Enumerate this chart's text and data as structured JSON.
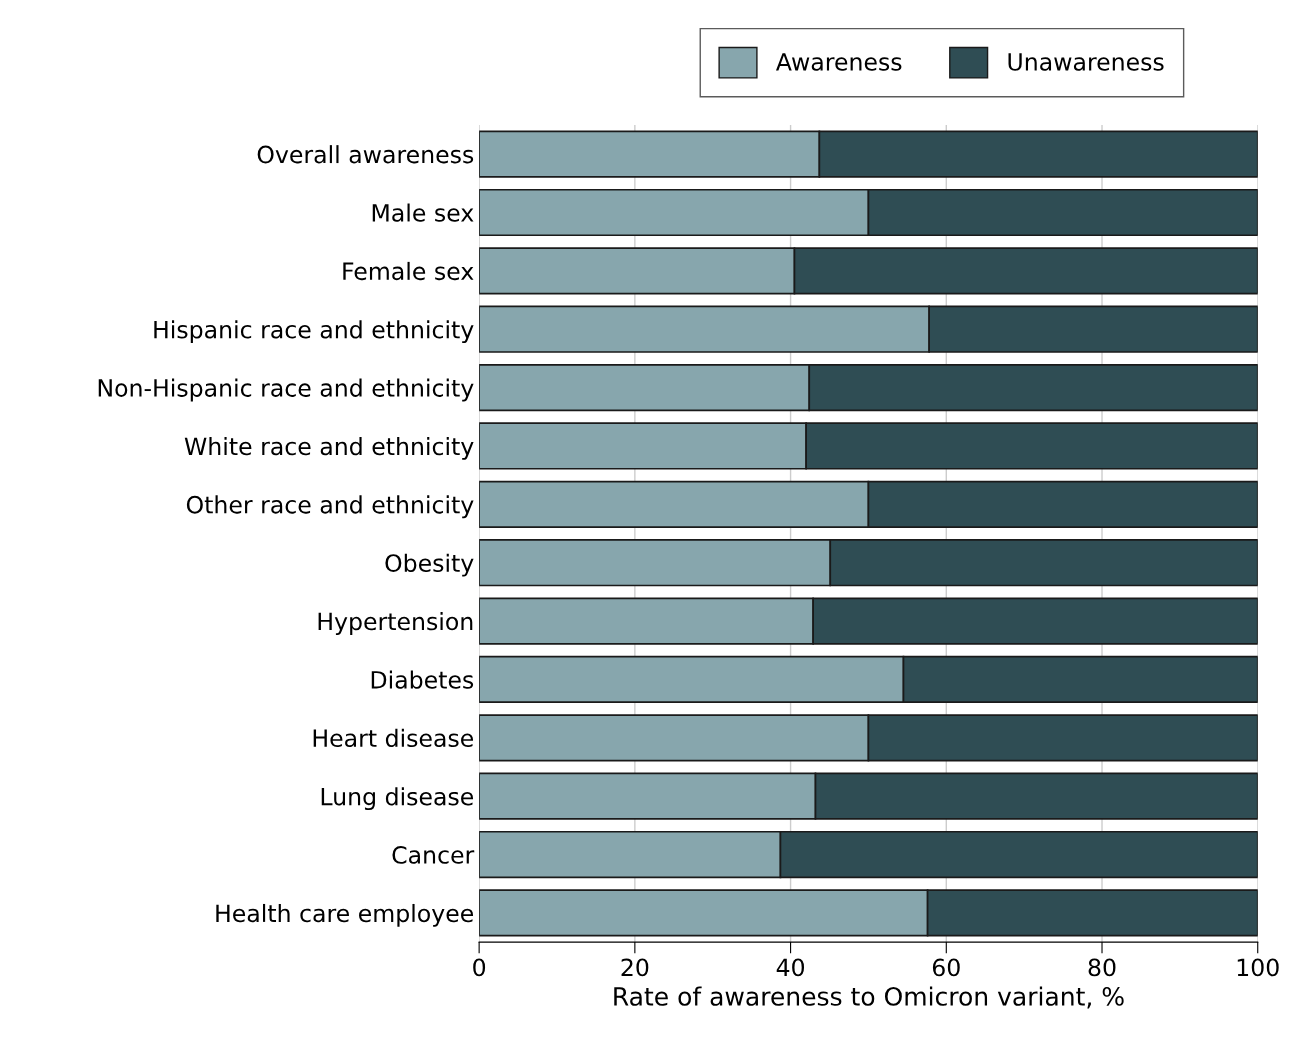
{
  "chart_data": {
    "type": "bar",
    "orientation": "horizontal",
    "stacked": true,
    "categories": [
      "Overall awareness",
      "Male sex",
      "Female sex",
      "Hispanic race and ethnicity",
      "Non-Hispanic race and ethnicity",
      "White race and ethnicity",
      "Other race and ethnicity",
      "Obesity",
      "Hypertension",
      "Diabetes",
      "Heart disease",
      "Lung disease",
      "Cancer",
      "Health care employee"
    ],
    "series": [
      {
        "name": "Awareness",
        "color": "#87a6ad",
        "values": [
          43.7,
          50.0,
          40.5,
          57.8,
          42.4,
          42.0,
          50.0,
          45.1,
          42.9,
          54.5,
          50.0,
          43.2,
          38.7,
          57.6
        ]
      },
      {
        "name": "Unawareness",
        "color": "#2f4d54",
        "values": [
          56.3,
          50.0,
          59.5,
          42.2,
          57.6,
          58.0,
          50.0,
          54.9,
          57.1,
          45.5,
          50.0,
          56.8,
          61.3,
          42.4
        ]
      }
    ],
    "xlabel": "Rate of awareness to Omicron variant, %",
    "xlim": [
      0,
      100
    ],
    "xticks": [
      0,
      20,
      40,
      60,
      80,
      100
    ],
    "grid": "x",
    "legend": "top right"
  }
}
